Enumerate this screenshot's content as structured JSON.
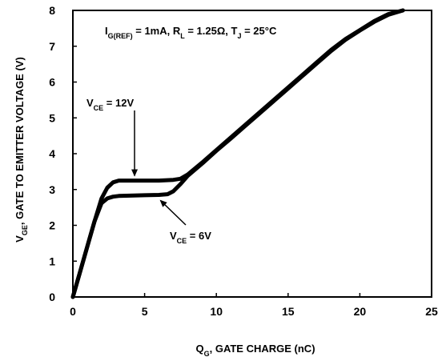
{
  "chart_data": {
    "type": "line",
    "xlabel": {
      "main": "Q",
      "sub": "G",
      "rest": ", GATE CHARGE (nC)"
    },
    "ylabel": {
      "main": "V",
      "sub": "GE",
      "rest": ", GATE TO EMITTER VOLTAGE (V)"
    },
    "xlim": [
      0,
      25
    ],
    "ylim": [
      0,
      8
    ],
    "xticks": [
      0,
      5,
      10,
      15,
      20,
      25
    ],
    "yticks": [
      0,
      1,
      2,
      3,
      4,
      5,
      6,
      7,
      8
    ],
    "grid": false,
    "conditions": {
      "parts": [
        {
          "t": "I",
          "s": "normal"
        },
        {
          "t": "G(REF)",
          "s": "sub"
        },
        {
          "t": " = 1mA, R",
          "s": "normal"
        },
        {
          "t": "L",
          "s": "sub"
        },
        {
          "t": " = 1.25Ω,  T",
          "s": "normal"
        },
        {
          "t": "J",
          "s": "sub"
        },
        {
          "t": " = 25°C",
          "s": "normal"
        }
      ]
    },
    "series": [
      {
        "name_parts": [
          {
            "t": "V",
            "s": "normal"
          },
          {
            "t": "CE",
            "s": "sub"
          },
          {
            "t": " = 12V",
            "s": "normal"
          }
        ],
        "x": [
          0,
          0.5,
          1.0,
          1.5,
          2.0,
          2.4,
          2.8,
          3.2,
          4,
          5,
          6,
          7,
          7.5,
          8,
          9,
          10,
          11,
          12,
          13,
          14,
          15,
          16,
          17,
          18,
          19,
          20,
          21,
          22,
          23
        ],
        "y": [
          0,
          0.7,
          1.4,
          2.1,
          2.75,
          3.05,
          3.2,
          3.25,
          3.25,
          3.25,
          3.25,
          3.27,
          3.3,
          3.42,
          3.75,
          4.1,
          4.45,
          4.8,
          5.15,
          5.5,
          5.85,
          6.2,
          6.55,
          6.9,
          7.2,
          7.45,
          7.7,
          7.9,
          8.0
        ]
      },
      {
        "name_parts": [
          {
            "t": "V",
            "s": "normal"
          },
          {
            "t": "CE",
            "s": "sub"
          },
          {
            "t": " = 6V",
            "s": "normal"
          }
        ],
        "x": [
          0,
          0.5,
          1.0,
          1.5,
          2.0,
          2.4,
          2.8,
          3.2,
          4,
          5,
          6,
          6.6,
          7,
          7.5,
          8,
          9,
          10,
          11,
          12,
          13,
          14,
          15,
          16,
          17,
          18,
          19,
          20,
          21,
          22,
          23
        ],
        "y": [
          0,
          0.7,
          1.4,
          2.1,
          2.62,
          2.75,
          2.8,
          2.82,
          2.83,
          2.84,
          2.85,
          2.87,
          2.95,
          3.15,
          3.38,
          3.72,
          4.08,
          4.42,
          4.77,
          5.12,
          5.47,
          5.82,
          6.17,
          6.52,
          6.87,
          7.18,
          7.44,
          7.68,
          7.88,
          8.0
        ]
      }
    ],
    "annotations": [
      {
        "series": 0,
        "arrow_target": [
          4.3,
          3.25
        ]
      },
      {
        "series": 1,
        "arrow_target": [
          6.1,
          2.83
        ]
      }
    ]
  }
}
